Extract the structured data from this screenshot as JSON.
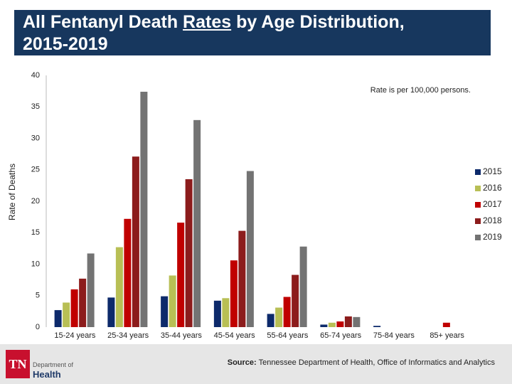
{
  "chart_data": {
    "type": "bar",
    "title": [
      "All Fentanyl Death",
      "Rates",
      "by Age Distribution,",
      "2015-2019"
    ],
    "y_label": "Rate of Deaths",
    "note": "Rate is per 100,000 persons.",
    "categories": [
      "15-24 years",
      "25-34 years",
      "35-44 years",
      "45-54 years",
      "55-64 years",
      "65-74 years",
      "75-84 years",
      "85+ years"
    ],
    "series": [
      {
        "name": "2015",
        "color": "#0d2a6b",
        "values": [
          2.7,
          4.7,
          4.9,
          4.2,
          2.1,
          0.4,
          0.2,
          0
        ]
      },
      {
        "name": "2016",
        "color": "#b8bf55",
        "values": [
          3.9,
          12.7,
          8.2,
          4.6,
          3.1,
          0.7,
          0,
          0
        ]
      },
      {
        "name": "2017",
        "color": "#c00000",
        "values": [
          6.0,
          17.2,
          16.6,
          10.6,
          4.8,
          0.9,
          0,
          0.7
        ]
      },
      {
        "name": "2018",
        "color": "#8c1c1c",
        "values": [
          7.7,
          27.1,
          23.5,
          15.3,
          8.3,
          1.7,
          0,
          0
        ]
      },
      {
        "name": "2019",
        "color": "#737373",
        "values": [
          11.7,
          37.4,
          32.9,
          24.8,
          12.8,
          1.6,
          0,
          0
        ]
      }
    ],
    "ylim": [
      0,
      40
    ],
    "yticks": [
      0,
      5,
      10,
      15,
      20,
      25,
      30,
      35,
      40
    ],
    "grid": false,
    "legend": "right"
  },
  "footer": {
    "source_label": "Source:",
    "source_text": "Tennessee Department of Health, Office of Informatics and Analytics",
    "logo": {
      "mark": "TN",
      "line1": "Department of",
      "line2": "Health"
    }
  }
}
